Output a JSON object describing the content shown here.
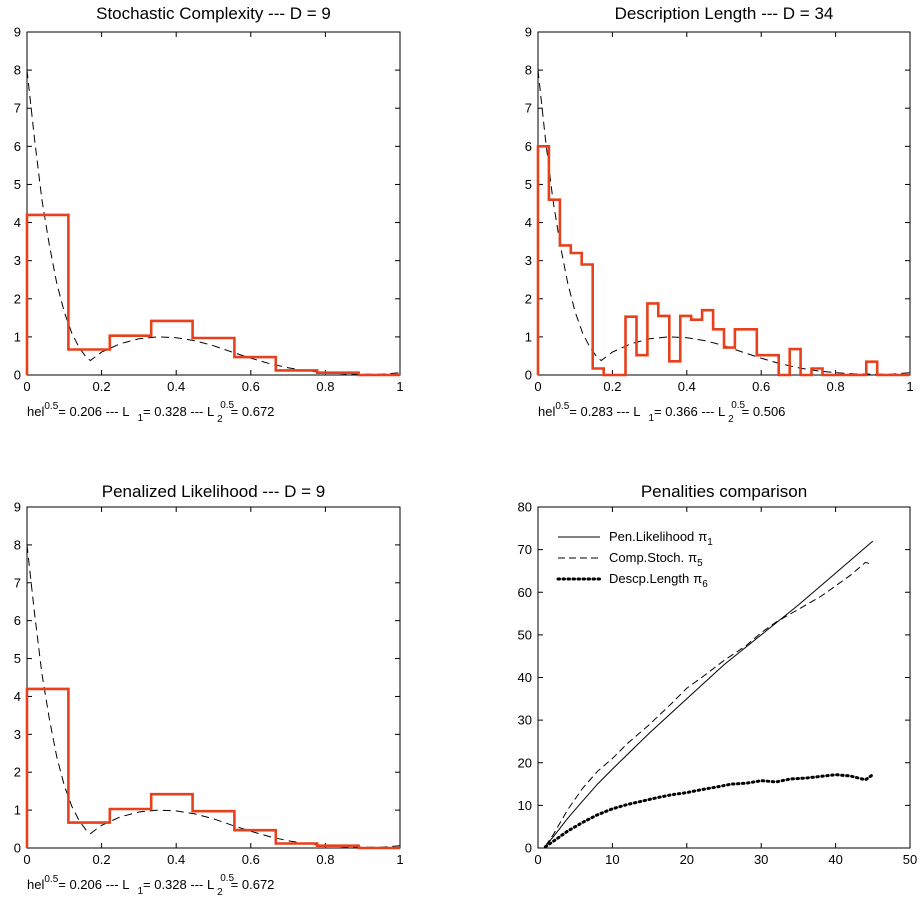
{
  "chart_data": [
    {
      "type": "line",
      "title": "Stochastic Complexity --- D = 9",
      "xlim": [
        0,
        1
      ],
      "ylim": [
        0,
        9
      ],
      "xticks": [
        "0",
        "0.2",
        "0.4",
        "0.6",
        "0.8",
        "1"
      ],
      "yticks": [
        "0",
        "1",
        "2",
        "3",
        "4",
        "5",
        "6",
        "7",
        "8",
        "9"
      ],
      "histogram": {
        "edges": [
          0,
          0.111,
          0.222,
          0.333,
          0.444,
          0.556,
          0.667,
          0.778,
          0.889,
          1.0
        ],
        "heights": [
          4.2,
          0.67,
          1.03,
          1.42,
          0.97,
          0.47,
          0.12,
          0.06,
          0.0
        ],
        "color": "#e8401c"
      },
      "density": {
        "x": [
          0,
          0.02,
          0.04,
          0.06,
          0.08,
          0.1,
          0.12,
          0.14,
          0.16,
          0.17,
          0.2,
          0.25,
          0.3,
          0.35,
          0.4,
          0.45,
          0.5,
          0.55,
          0.6,
          0.65,
          0.7,
          0.75,
          0.8,
          0.85,
          0.9,
          0.95,
          1.0
        ],
        "y": [
          8.0,
          6.2,
          4.6,
          3.4,
          2.4,
          1.65,
          1.1,
          0.72,
          0.45,
          0.38,
          0.6,
          0.82,
          0.95,
          1.0,
          0.98,
          0.9,
          0.77,
          0.6,
          0.44,
          0.3,
          0.19,
          0.11,
          0.06,
          0.03,
          0.02,
          0.02,
          0.06
        ]
      },
      "caption": {
        "hel_label": "hel",
        "hel_exp": "0.5",
        "hel_value": "= 0.206 --- L",
        "l1_sub": "1",
        "l1_value": "= 0.328 --- L",
        "l2_sup": "0.5",
        "l2_sub": "2",
        "l2_value": "= 0.672"
      }
    },
    {
      "type": "line",
      "title": "Description Length --- D = 34",
      "xlim": [
        0,
        1
      ],
      "ylim": [
        0,
        9
      ],
      "xticks": [
        "0",
        "0.2",
        "0.4",
        "0.6",
        "0.8",
        "1"
      ],
      "yticks": [
        "0",
        "1",
        "2",
        "3",
        "4",
        "5",
        "6",
        "7",
        "8",
        "9"
      ],
      "histogram": {
        "edges": [
          0,
          0.0294,
          0.0588,
          0.0882,
          0.1176,
          0.1471,
          0.1765,
          0.2059,
          0.2353,
          0.2647,
          0.2941,
          0.3235,
          0.3529,
          0.3824,
          0.4118,
          0.4412,
          0.4706,
          0.5,
          0.5294,
          0.5588,
          0.5882,
          0.6176,
          0.6471,
          0.6765,
          0.7059,
          0.7353,
          0.7647,
          0.7941,
          0.8235,
          0.8529,
          0.8824,
          0.9118,
          0.9412,
          0.9706,
          1.0
        ],
        "heights": [
          6.0,
          4.6,
          3.4,
          3.2,
          2.9,
          0.17,
          0.0,
          0.0,
          1.53,
          0.52,
          1.88,
          1.55,
          0.36,
          1.55,
          1.45,
          1.7,
          1.2,
          0.72,
          1.2,
          1.2,
          0.52,
          0.52,
          0.0,
          0.68,
          0.0,
          0.17,
          0.0,
          0.0,
          0.0,
          0.0,
          0.35,
          0.0,
          0.0,
          0.0
        ],
        "color": "#e8401c"
      },
      "density": {
        "x": [
          0,
          0.02,
          0.04,
          0.06,
          0.08,
          0.1,
          0.12,
          0.14,
          0.16,
          0.17,
          0.2,
          0.25,
          0.3,
          0.35,
          0.4,
          0.45,
          0.5,
          0.55,
          0.6,
          0.65,
          0.7,
          0.75,
          0.8,
          0.85,
          0.9,
          0.95,
          1.0
        ],
        "y": [
          8.0,
          6.2,
          4.6,
          3.4,
          2.4,
          1.65,
          1.1,
          0.72,
          0.45,
          0.38,
          0.6,
          0.82,
          0.95,
          1.0,
          0.98,
          0.9,
          0.77,
          0.6,
          0.44,
          0.3,
          0.19,
          0.11,
          0.06,
          0.03,
          0.02,
          0.02,
          0.06
        ]
      },
      "caption": {
        "hel_label": "hel",
        "hel_exp": "0.5",
        "hel_value": "= 0.283 --- L",
        "l1_sub": "1",
        "l1_value": "= 0.366 --- L",
        "l2_sup": "0.5",
        "l2_sub": "2",
        "l2_value": "= 0.506"
      }
    },
    {
      "type": "line",
      "title": "Penalized Likelihood --- D = 9",
      "xlim": [
        0,
        1
      ],
      "ylim": [
        0,
        9
      ],
      "xticks": [
        "0",
        "0.2",
        "0.4",
        "0.6",
        "0.8",
        "1"
      ],
      "yticks": [
        "0",
        "1",
        "2",
        "3",
        "4",
        "5",
        "6",
        "7",
        "8",
        "9"
      ],
      "histogram": {
        "edges": [
          0,
          0.111,
          0.222,
          0.333,
          0.444,
          0.556,
          0.667,
          0.778,
          0.889,
          1.0
        ],
        "heights": [
          4.2,
          0.67,
          1.03,
          1.42,
          0.97,
          0.47,
          0.12,
          0.06,
          0.0
        ],
        "color": "#e8401c"
      },
      "density": {
        "x": [
          0,
          0.02,
          0.04,
          0.06,
          0.08,
          0.1,
          0.12,
          0.14,
          0.16,
          0.17,
          0.2,
          0.25,
          0.3,
          0.35,
          0.4,
          0.45,
          0.5,
          0.55,
          0.6,
          0.65,
          0.7,
          0.75,
          0.8,
          0.85,
          0.9,
          0.95,
          1.0
        ],
        "y": [
          8.0,
          6.2,
          4.6,
          3.4,
          2.4,
          1.65,
          1.1,
          0.72,
          0.45,
          0.38,
          0.6,
          0.82,
          0.95,
          1.0,
          0.98,
          0.9,
          0.77,
          0.6,
          0.44,
          0.3,
          0.19,
          0.11,
          0.06,
          0.03,
          0.02,
          0.02,
          0.06
        ]
      },
      "caption": {
        "hel_label": "hel",
        "hel_exp": "0.5",
        "hel_value": "= 0.206 --- L",
        "l1_sub": "1",
        "l1_value": "= 0.328 --- L",
        "l2_sup": "0.5",
        "l2_sub": "2",
        "l2_value": "= 0.672"
      }
    },
    {
      "type": "line",
      "title": "Penalities comparison",
      "xlim": [
        0,
        50
      ],
      "ylim": [
        0,
        80
      ],
      "xticks": [
        "0",
        "10",
        "20",
        "30",
        "40",
        "50"
      ],
      "yticks": [
        "0",
        "10",
        "20",
        "30",
        "40",
        "50",
        "60",
        "70",
        "80"
      ],
      "legend_position": "top-left",
      "series": [
        {
          "name": "Pen.Likelihood",
          "symbol": "π",
          "sub": "1",
          "style": "solid",
          "x": [
            1,
            2,
            4,
            6,
            8,
            10,
            15,
            20,
            25,
            30,
            35,
            40,
            45
          ],
          "y": [
            0.5,
            2.5,
            7,
            11,
            15,
            18.5,
            27,
            35,
            43,
            50,
            57,
            64.5,
            72
          ]
        },
        {
          "name": "Comp.Stoch.",
          "symbol": "π",
          "sub": "5",
          "style": "dashed",
          "x": [
            1,
            2,
            4,
            6,
            8,
            10,
            12,
            15,
            18,
            20,
            22,
            25,
            28,
            30,
            32,
            35,
            38,
            40,
            42,
            44,
            45
          ],
          "y": [
            0.5,
            3,
            9,
            14,
            18,
            21,
            24.5,
            29,
            34,
            37.5,
            40,
            44,
            47.5,
            50.5,
            53,
            56,
            59,
            61.5,
            64,
            67,
            66.5
          ]
        },
        {
          "name": "Descp.Length",
          "symbol": "π",
          "sub": "6",
          "style": "dotted",
          "x": [
            1,
            2,
            4,
            6,
            8,
            10,
            12,
            14,
            16,
            18,
            20,
            22,
            24,
            26,
            28,
            30,
            32,
            34,
            36,
            38,
            40,
            42,
            44,
            45
          ],
          "y": [
            0.3,
            1.5,
            4,
            6,
            7.8,
            9.2,
            10.2,
            11.0,
            11.8,
            12.5,
            13.0,
            13.7,
            14.3,
            15.0,
            15.2,
            15.8,
            15.5,
            16.2,
            16.4,
            16.8,
            17.2,
            16.9,
            16.0,
            17.2
          ]
        }
      ]
    }
  ]
}
